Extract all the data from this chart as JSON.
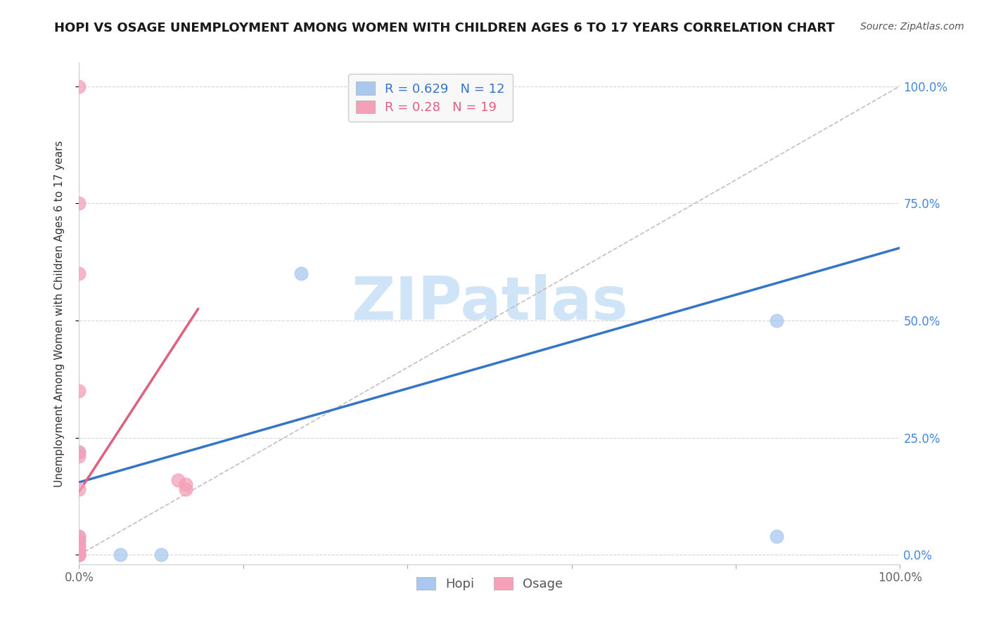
{
  "title": "HOPI VS OSAGE UNEMPLOYMENT AMONG WOMEN WITH CHILDREN AGES 6 TO 17 YEARS CORRELATION CHART",
  "source": "Source: ZipAtlas.com",
  "ylabel": "Unemployment Among Women with Children Ages 6 to 17 years",
  "xlim": [
    0,
    1
  ],
  "ylim": [
    -0.02,
    1.05
  ],
  "ytick_positions": [
    0.0,
    0.25,
    0.5,
    0.75,
    1.0
  ],
  "ytick_labels": [
    "0.0%",
    "25.0%",
    "50.0%",
    "75.0%",
    "100.0%"
  ],
  "hopi_x": [
    0.0,
    0.0,
    0.0,
    0.0,
    0.0,
    0.0,
    0.0,
    0.05,
    0.1,
    0.27,
    0.85,
    0.85
  ],
  "hopi_y": [
    0.0,
    0.0,
    0.01,
    0.02,
    0.03,
    0.04,
    0.22,
    0.0,
    0.0,
    0.6,
    0.5,
    0.04
  ],
  "osage_x": [
    0.0,
    0.0,
    0.0,
    0.0,
    0.0,
    0.0,
    0.0,
    0.0,
    0.0,
    0.0,
    0.0,
    0.0,
    0.0,
    0.0,
    0.0,
    0.12,
    0.13,
    0.13,
    0.0
  ],
  "osage_y": [
    0.0,
    0.0,
    0.0,
    0.0,
    0.0,
    0.01,
    0.02,
    0.03,
    0.04,
    0.14,
    0.21,
    0.22,
    0.6,
    0.75,
    1.0,
    0.16,
    0.14,
    0.15,
    0.35
  ],
  "hopi_color": "#a8c8f0",
  "osage_color": "#f4a0b8",
  "hopi_line_color": "#3575c8",
  "osage_line_color": "#e06080",
  "hopi_line": {
    "x0": 0.0,
    "y0": 0.155,
    "x1": 1.0,
    "y1": 0.655
  },
  "osage_line": {
    "x0": 0.0,
    "y0": 0.135,
    "x1": 0.145,
    "y1": 0.525
  },
  "ref_line": {
    "x0": 0.0,
    "y0": 0.0,
    "x1": 1.0,
    "y1": 1.0
  },
  "hopi_R": 0.629,
  "hopi_N": 12,
  "osage_R": 0.28,
  "osage_N": 19,
  "background_color": "#ffffff",
  "grid_color": "#cccccc",
  "watermark_text": "ZIPatlas",
  "watermark_color": "#d0e4f8",
  "legend_box_color": "#f8f8f8",
  "title_fontsize": 13,
  "source_fontsize": 10,
  "ylabel_fontsize": 11,
  "tick_fontsize": 12,
  "legend_fontsize": 13,
  "scatter_size": 180,
  "scatter_alpha": 0.75
}
